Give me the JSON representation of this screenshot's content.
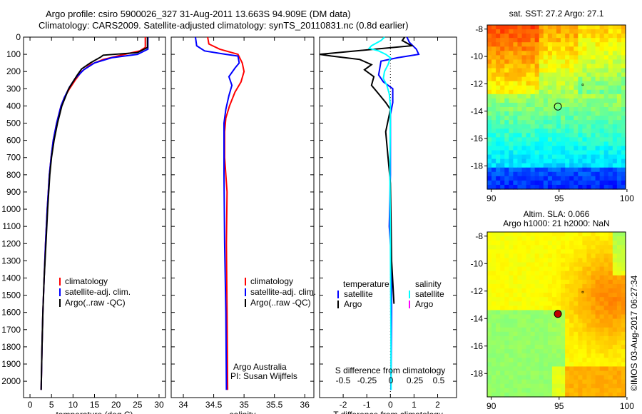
{
  "header": {
    "title_line1": "Argo profile: csiro 5900026_327 31-Aug-2011 13.663S 94.909E (DM data)",
    "title_line2": "Climatology: CARS2009. Satellite-adjusted climatology: synTS_20110831.nc (0.8d earlier)"
  },
  "colors": {
    "climatology": "#ff0000",
    "satellite": "#0000ff",
    "argo": "#000000",
    "sal_satellite": "#00ffff",
    "sal_argo": "#ff00ff"
  },
  "chart_data": [
    {
      "type": "line",
      "name": "temperature-profile",
      "xlabel": "temperature (deg C)",
      "ylabel": "",
      "xlim": [
        -1.5,
        31.5
      ],
      "ylim": [
        2095,
        0
      ],
      "xticks": [
        0,
        5,
        10,
        15,
        20,
        25,
        30
      ],
      "yticks": [
        0,
        100,
        200,
        300,
        400,
        500,
        600,
        700,
        800,
        900,
        1000,
        1100,
        1200,
        1300,
        1400,
        1500,
        1600,
        1700,
        1800,
        1900,
        2000
      ],
      "legend": [
        "climatology",
        "satellite-adj. clim.",
        "Argo(..raw -QC)"
      ],
      "series": [
        {
          "name": "climatology",
          "color": "#ff0000",
          "points": [
            [
              26.8,
              0
            ],
            [
              26.8,
              60
            ],
            [
              25.5,
              80
            ],
            [
              22,
              100
            ],
            [
              17,
              130
            ],
            [
              14,
              160
            ],
            [
              12,
              200
            ],
            [
              10.5,
              250
            ],
            [
              9.2,
              300
            ],
            [
              8,
              350
            ],
            [
              7.2,
              400
            ],
            [
              6.2,
              500
            ],
            [
              5.4,
              600
            ],
            [
              4.9,
              700
            ],
            [
              4.5,
              800
            ],
            [
              4.0,
              1000
            ],
            [
              3.6,
              1200
            ],
            [
              3.3,
              1400
            ],
            [
              3.0,
              1600
            ],
            [
              2.8,
              1800
            ],
            [
              2.6,
              2050
            ]
          ]
        },
        {
          "name": "satellite-adj. clim.",
          "color": "#0000ff",
          "points": [
            [
              27.4,
              0
            ],
            [
              27.4,
              70
            ],
            [
              25,
              100
            ],
            [
              19,
              120
            ],
            [
              15,
              150
            ],
            [
              12.5,
              190
            ],
            [
              10.5,
              240
            ],
            [
              9.2,
              290
            ],
            [
              8,
              350
            ],
            [
              7.2,
              400
            ],
            [
              6.2,
              500
            ],
            [
              5.4,
              600
            ],
            [
              4.9,
              700
            ],
            [
              4.5,
              800
            ],
            [
              4.0,
              1000
            ],
            [
              3.6,
              1200
            ],
            [
              3.3,
              1400
            ],
            [
              3.0,
              1600
            ],
            [
              2.8,
              1800
            ],
            [
              2.6,
              2050
            ]
          ]
        },
        {
          "name": "Argo(..raw -QC)",
          "color": "#000000",
          "points": [
            [
              27.3,
              0
            ],
            [
              27.3,
              60
            ],
            [
              25,
              90
            ],
            [
              17,
              105
            ],
            [
              16.5,
              115
            ],
            [
              14,
              150
            ],
            [
              12,
              185
            ],
            [
              11,
              220
            ],
            [
              10,
              260
            ],
            [
              9,
              300
            ],
            [
              8.2,
              350
            ],
            [
              7.4,
              400
            ],
            [
              6.4,
              500
            ],
            [
              5.6,
              600
            ],
            [
              5,
              700
            ],
            [
              4.6,
              800
            ],
            [
              4.1,
              1000
            ],
            [
              3.7,
              1200
            ],
            [
              3.3,
              1400
            ],
            [
              3.0,
              1600
            ],
            [
              2.8,
              1800
            ],
            [
              2.6,
              2050
            ]
          ]
        }
      ]
    },
    {
      "type": "line",
      "name": "salinity-profile",
      "xlabel": "salinity",
      "xlim": [
        33.8,
        36.15
      ],
      "ylim": [
        2095,
        0
      ],
      "xticks": [
        34,
        34.5,
        35,
        35.5,
        36
      ],
      "legend": [
        "climatology",
        "satellite-adj. clim.",
        "Argo(..raw -QC)"
      ],
      "annotations": [
        "Argo Australia",
        "PI: Susan Wijffels"
      ],
      "series": [
        {
          "name": "climatology",
          "color": "#ff0000",
          "points": [
            [
              34.4,
              0
            ],
            [
              34.42,
              40
            ],
            [
              34.6,
              70
            ],
            [
              34.9,
              100
            ],
            [
              34.97,
              150
            ],
            [
              35.0,
              200
            ],
            [
              34.95,
              260
            ],
            [
              34.85,
              320
            ],
            [
              34.76,
              400
            ],
            [
              34.7,
              470
            ],
            [
              34.68,
              550
            ],
            [
              34.68,
              700
            ],
            [
              34.72,
              900
            ],
            [
              34.71,
              1200
            ],
            [
              34.72,
              1600
            ],
            [
              34.73,
              2050
            ]
          ]
        },
        {
          "name": "satellite-adj. clim.",
          "color": "#0000ff",
          "points": [
            [
              34.2,
              0
            ],
            [
              34.22,
              50
            ],
            [
              34.35,
              80
            ],
            [
              34.7,
              100
            ],
            [
              34.9,
              110
            ],
            [
              34.92,
              150
            ],
            [
              34.85,
              180
            ],
            [
              34.75,
              230
            ],
            [
              34.8,
              280
            ],
            [
              34.75,
              340
            ],
            [
              34.7,
              420
            ],
            [
              34.67,
              500
            ],
            [
              34.67,
              800
            ],
            [
              34.68,
              1200
            ],
            [
              34.7,
              1600
            ],
            [
              34.71,
              2050
            ]
          ]
        }
      ]
    },
    {
      "type": "line",
      "name": "difference-profile",
      "xlabel": "T difference from climatology",
      "x2label": "S difference from climatology",
      "xlim": [
        -3,
        2.8
      ],
      "ylim": [
        2095,
        0
      ],
      "xticks": [
        -2,
        -1,
        0,
        1,
        2
      ],
      "x2ticks": [
        "-0.5",
        "-0.25",
        "0",
        "0.25",
        "0.5"
      ],
      "legend": {
        "temperature_heading": "temperature",
        "salinity_heading": "salinity",
        "items": [
          "satellite",
          "Argo",
          "satellite",
          "Argo"
        ]
      },
      "series": [
        {
          "name": "temperature satellite",
          "color": "#0000ff",
          "points": [
            [
              0.7,
              0
            ],
            [
              0.8,
              30
            ],
            [
              1.1,
              70
            ],
            [
              1.2,
              100
            ],
            [
              0.3,
              120
            ],
            [
              -0.4,
              140
            ],
            [
              -0.5,
              220
            ],
            [
              -0.3,
              260
            ],
            [
              0.1,
              300
            ],
            [
              0.1,
              380
            ],
            [
              0,
              450
            ],
            [
              0,
              800
            ],
            [
              -0.05,
              1100
            ],
            [
              0.05,
              1300
            ],
            [
              0.05,
              1600
            ],
            [
              0.02,
              2050
            ]
          ]
        },
        {
          "name": "temperature Argo",
          "color": "#000000",
          "points": [
            [
              0.6,
              0
            ],
            [
              0.5,
              20
            ],
            [
              0.9,
              50
            ],
            [
              -3,
              100
            ],
            [
              -2.5,
              110
            ],
            [
              -1.3,
              130
            ],
            [
              -0.8,
              160
            ],
            [
              -1.1,
              190
            ],
            [
              -0.7,
              230
            ],
            [
              -0.8,
              280
            ],
            [
              -0.5,
              330
            ],
            [
              -0.2,
              380
            ],
            [
              0,
              420
            ],
            [
              -0.2,
              550
            ],
            [
              -0.1,
              700
            ],
            [
              0,
              850
            ],
            [
              0.05,
              1300
            ],
            [
              0.15,
              1550
            ]
          ]
        },
        {
          "name": "salinity satellite",
          "color": "#00ffff",
          "points": [
            [
              -0.25,
              0
            ],
            [
              -0.4,
              20
            ],
            [
              -0.8,
              50
            ],
            [
              -0.9,
              65
            ],
            [
              -0.5,
              80
            ],
            [
              -0.2,
              100
            ],
            [
              0,
              120
            ],
            [
              -0.1,
              160
            ],
            [
              -0.25,
              200
            ],
            [
              -0.3,
              240
            ],
            [
              -0.15,
              280
            ],
            [
              -0.05,
              330
            ],
            [
              0,
              400
            ],
            [
              -0.02,
              800
            ],
            [
              0,
              1200
            ],
            [
              0.02,
              1700
            ],
            [
              0.03,
              2050
            ]
          ]
        }
      ]
    },
    {
      "type": "heatmap",
      "name": "sst-map",
      "title": "sat. SST: 27.2 Argo: 27.1",
      "xticks": [
        90,
        95,
        100
      ],
      "yticks": [
        -8,
        -10,
        -12,
        -14,
        -16,
        -18
      ],
      "xlim": [
        89.7,
        99.9
      ],
      "ylim": [
        -19.7,
        -7.7
      ],
      "marker": [
        94.909,
        -13.663
      ]
    },
    {
      "type": "heatmap",
      "name": "sla-map",
      "title_line1": "Altim. SLA: 0.066",
      "title_line2": "Argo h1000: 21 h2000: NaN",
      "xticks": [
        90,
        95,
        100
      ],
      "yticks": [
        -8,
        -10,
        -12,
        -14,
        -16,
        -18
      ],
      "xlim": [
        89.7,
        99.9
      ],
      "ylim": [
        -19.7,
        -7.7
      ],
      "marker": [
        94.909,
        -13.663
      ]
    }
  ],
  "footer": {
    "copyright": "©IMOS 03-Aug-2017 06:27:34"
  }
}
